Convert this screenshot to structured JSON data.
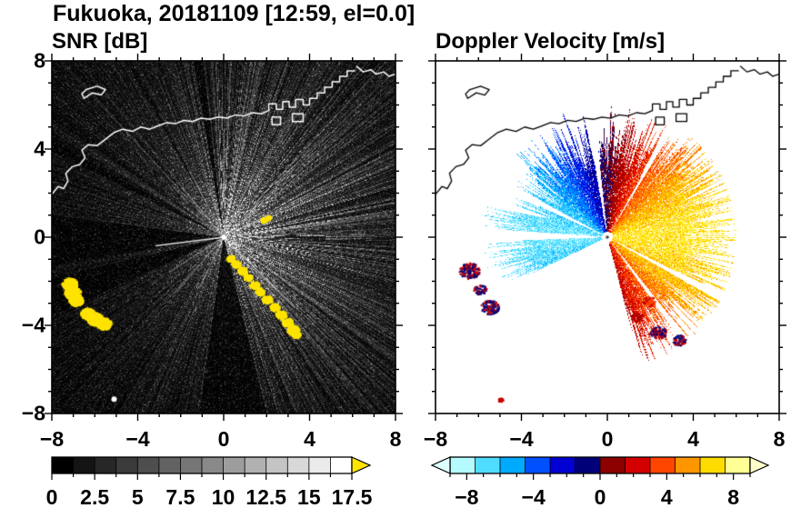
{
  "header": {
    "title": "Fukuoka, 20181109 [12:59, el=0.0]"
  },
  "chart_data": [
    {
      "type": "heatmap",
      "title": "SNR [dB]",
      "xlabel": "",
      "ylabel": "",
      "xlim": [
        -8,
        8
      ],
      "ylim": [
        -8,
        8
      ],
      "xticks": [
        -8,
        -4,
        0,
        4,
        8
      ],
      "yticks": [
        8,
        4,
        0,
        -4,
        -8
      ],
      "minor_tick_step": 1,
      "colorbar": {
        "range": [
          0,
          17.5
        ],
        "tick_labels": [
          0,
          2.5,
          5,
          7.5,
          10,
          12.5,
          15,
          17.5
        ],
        "minor_step": 1.25,
        "major_step": 2.5,
        "n_segments": 14,
        "start_color": "#000000",
        "end_color": "#ffffff",
        "over_arrow_color": "#ffe400"
      },
      "render": {
        "background": "#000000",
        "coast_color": "#ffffff",
        "clutter_color": "#ffe400",
        "fan_bias_deg": 15,
        "shadow_wedges": [
          [
            151,
            154
          ],
          [
            173,
            189
          ],
          [
            193,
            204
          ],
          [
            262,
            284
          ],
          [
            97,
            100
          ]
        ],
        "bright_rays": [
          [
            187,
            3.2,
            0.85
          ],
          [
            316,
            4.6,
            0.5
          ],
          [
            105,
            2.6,
            0.28
          ],
          [
            118,
            3.4,
            0.28
          ],
          [
            131,
            3.0,
            0.28
          ],
          [
            143,
            2.3,
            0.22
          ],
          [
            38,
            3.8,
            0.25
          ],
          [
            64,
            3.2,
            0.22
          ],
          [
            212,
            3.0,
            0.25
          ],
          [
            228,
            3.4,
            0.25
          ],
          [
            244,
            2.6,
            0.22
          ]
        ],
        "clutter_arc": [
          {
            "x": 0.3,
            "y": -0.95,
            "s": 0.15
          },
          {
            "x": 0.55,
            "y": -1.2,
            "s": 0.16
          },
          {
            "x": 0.85,
            "y": -1.5,
            "s": 0.17
          },
          {
            "x": 1.1,
            "y": -1.8,
            "s": 0.16
          },
          {
            "x": 1.4,
            "y": -2.15,
            "s": 0.18
          },
          {
            "x": 1.65,
            "y": -2.45,
            "s": 0.17
          },
          {
            "x": 2.0,
            "y": -2.8,
            "s": 0.19
          },
          {
            "x": 2.35,
            "y": -3.15,
            "s": 0.18
          },
          {
            "x": 2.65,
            "y": -3.5,
            "s": 0.2
          },
          {
            "x": 2.95,
            "y": -3.85,
            "s": 0.2
          },
          {
            "x": 3.2,
            "y": -4.2,
            "s": 0.22
          },
          {
            "x": 3.35,
            "y": -4.4,
            "s": 0.16
          }
        ],
        "clutter_patches": [
          {
            "x": -7.2,
            "y": -2.1,
            "s": 0.28
          },
          {
            "x": -7.05,
            "y": -2.5,
            "s": 0.3
          },
          {
            "x": -6.9,
            "y": -2.85,
            "s": 0.26
          },
          {
            "x": -6.35,
            "y": -3.45,
            "s": 0.26
          },
          {
            "x": -6.0,
            "y": -3.7,
            "s": 0.3
          },
          {
            "x": -5.6,
            "y": -3.9,
            "s": 0.27
          },
          {
            "x": 1.85,
            "y": 0.8,
            "s": 0.12
          },
          {
            "x": 2.05,
            "y": 0.9,
            "s": 0.1
          }
        ],
        "white_dot": [
          -5.1,
          -7.35
        ]
      }
    },
    {
      "type": "heatmap",
      "title": "Doppler Velocity [m/s]",
      "xlabel": "",
      "ylabel": "",
      "xlim": [
        -8,
        8
      ],
      "ylim": [
        -8,
        8
      ],
      "xticks": [
        -8,
        -4,
        0,
        4,
        8
      ],
      "yticks": [
        8,
        4,
        0,
        -4,
        -8
      ],
      "minor_tick_step": 1,
      "colorbar": {
        "range": [
          -9,
          9
        ],
        "tick_labels": [
          -8,
          -4,
          0,
          4,
          8
        ],
        "minor_step": 1,
        "major_step": 4,
        "segments": [
          {
            "v0": -9,
            "v1": -7.5,
            "color": "#b4faff"
          },
          {
            "v0": -7.5,
            "v1": -6,
            "color": "#50dcff"
          },
          {
            "v0": -6,
            "v1": -4.5,
            "color": "#00aaff"
          },
          {
            "v0": -4.5,
            "v1": -3,
            "color": "#0050ff"
          },
          {
            "v0": -3,
            "v1": -1.5,
            "color": "#0000d2"
          },
          {
            "v0": -1.5,
            "v1": 0,
            "color": "#000078"
          },
          {
            "v0": 0,
            "v1": 1.5,
            "color": "#8c0000"
          },
          {
            "v0": 1.5,
            "v1": 3,
            "color": "#d20000"
          },
          {
            "v0": 3,
            "v1": 4.5,
            "color": "#ff4600"
          },
          {
            "v0": 4.5,
            "v1": 6,
            "color": "#ff9600"
          },
          {
            "v0": 6,
            "v1": 7.5,
            "color": "#ffdc00"
          },
          {
            "v0": 7.5,
            "v1": 9,
            "color": "#ffff96"
          }
        ],
        "under_arrow_color": "#dcffff",
        "over_arrow_color": "#ffffc8"
      },
      "render": {
        "background": "#ffffff",
        "coast_color": "#000000",
        "vmax": 7.2,
        "coverage": [
          285,
          205
        ],
        "gaps": [
          [
            58,
            60
          ],
          [
            96,
            100
          ],
          [
            152,
            156
          ],
          [
            176,
            182
          ],
          [
            306,
            309
          ],
          [
            331,
            334
          ]
        ],
        "rmax_profile": [
          [
            285,
            325,
            4.6
          ],
          [
            325,
            360,
            5.1
          ],
          [
            0,
            50,
            5.0
          ],
          [
            50,
            90,
            4.4
          ],
          [
            90,
            140,
            4.4
          ],
          [
            140,
            165,
            3.6
          ],
          [
            165,
            205,
            4.6
          ]
        ],
        "blobs": [
          {
            "x": -6.45,
            "y": -1.5,
            "r": 0.45,
            "colors": [
              "#000078",
              "#c80000"
            ]
          },
          {
            "x": -5.95,
            "y": -2.35,
            "r": 0.28,
            "colors": [
              "#c80000",
              "#000078"
            ]
          },
          {
            "x": -5.5,
            "y": -3.15,
            "r": 0.4,
            "colors": [
              "#000078",
              "#c80000"
            ]
          },
          {
            "x": 2.35,
            "y": -4.3,
            "r": 0.35,
            "colors": [
              "#c80000",
              "#000078"
            ]
          },
          {
            "x": 3.3,
            "y": -4.65,
            "r": 0.3,
            "colors": [
              "#000078",
              "#c80000"
            ]
          },
          {
            "x": 1.35,
            "y": -3.6,
            "r": 0.25,
            "colors": [
              "#c80000",
              "#8c0000"
            ]
          },
          {
            "x": 1.9,
            "y": -2.9,
            "r": 0.28,
            "colors": [
              "#c80000",
              "#ff4600"
            ]
          },
          {
            "x": -5.0,
            "y": -7.35,
            "r": 0.12,
            "colors": [
              "#c80000"
            ]
          }
        ]
      }
    }
  ],
  "coastlines": [
    [
      [
        -8,
        1.95
      ],
      [
        -7.7,
        2.3
      ],
      [
        -7.45,
        2.2
      ],
      [
        -7.25,
        2.55
      ],
      [
        -7.35,
        2.9
      ],
      [
        -7.05,
        3.2
      ],
      [
        -6.7,
        3.3
      ],
      [
        -6.45,
        3.6
      ],
      [
        -6.6,
        3.95
      ],
      [
        -6.3,
        4.2
      ],
      [
        -5.9,
        4.15
      ],
      [
        -5.5,
        4.45
      ],
      [
        -5.1,
        4.75
      ],
      [
        -4.7,
        4.9
      ],
      [
        -4.25,
        4.8
      ],
      [
        -3.85,
        5.0
      ],
      [
        -3.45,
        4.9
      ],
      [
        -3.05,
        5.05
      ],
      [
        -2.65,
        5.2
      ],
      [
        -2.25,
        5.15
      ],
      [
        -1.85,
        5.3
      ],
      [
        -1.45,
        5.25
      ],
      [
        -1.05,
        5.4
      ],
      [
        -0.65,
        5.35
      ],
      [
        -0.25,
        5.45
      ],
      [
        0.15,
        5.4
      ],
      [
        0.55,
        5.55
      ],
      [
        0.95,
        5.5
      ],
      [
        1.35,
        5.65
      ],
      [
        1.75,
        5.6
      ],
      [
        2.1,
        5.75
      ],
      [
        2.1,
        6.05
      ],
      [
        2.45,
        6.05
      ],
      [
        2.45,
        5.8
      ],
      [
        2.75,
        5.8
      ],
      [
        2.75,
        6.15
      ],
      [
        3.05,
        6.15
      ],
      [
        3.05,
        5.9
      ],
      [
        3.35,
        5.9
      ],
      [
        3.35,
        6.25
      ],
      [
        3.7,
        6.25
      ],
      [
        3.7,
        6.0
      ],
      [
        4.0,
        6.0
      ],
      [
        4.0,
        6.3
      ],
      [
        4.35,
        6.3
      ],
      [
        4.35,
        6.55
      ],
      [
        4.7,
        6.55
      ],
      [
        4.7,
        6.8
      ],
      [
        5.05,
        6.8
      ],
      [
        5.05,
        7.05
      ],
      [
        5.4,
        7.05
      ],
      [
        5.4,
        7.3
      ],
      [
        5.75,
        7.3
      ],
      [
        5.75,
        7.55
      ],
      [
        6.1,
        7.55
      ]
    ],
    [
      [
        -6.5,
        6.3
      ],
      [
        -6.1,
        6.55
      ],
      [
        -5.7,
        6.45
      ],
      [
        -5.5,
        6.7
      ],
      [
        -5.9,
        6.85
      ],
      [
        -6.4,
        6.7
      ],
      [
        -6.6,
        6.5
      ],
      [
        -6.5,
        6.3
      ]
    ],
    [
      [
        2.25,
        5.1
      ],
      [
        2.65,
        5.1
      ],
      [
        2.65,
        5.45
      ],
      [
        2.25,
        5.45
      ],
      [
        2.25,
        5.1
      ]
    ],
    [
      [
        3.2,
        5.25
      ],
      [
        3.7,
        5.25
      ],
      [
        3.7,
        5.6
      ],
      [
        3.2,
        5.6
      ],
      [
        3.2,
        5.25
      ]
    ],
    [
      [
        6.2,
        7.75
      ],
      [
        6.5,
        7.5
      ],
      [
        6.85,
        7.6
      ],
      [
        7.1,
        7.4
      ],
      [
        7.45,
        7.5
      ],
      [
        7.7,
        7.3
      ],
      [
        8,
        7.4
      ]
    ]
  ]
}
